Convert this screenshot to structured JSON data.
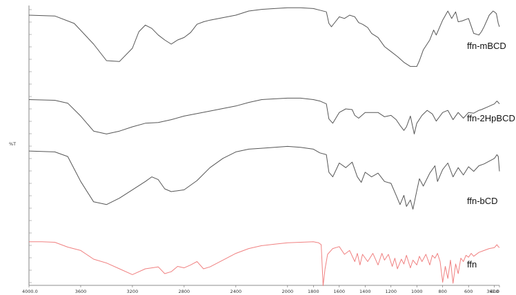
{
  "chart_data": {
    "type": "line",
    "title": "",
    "xlabel": "",
    "ylabel": "%T",
    "xlim": [
      4000.0,
      361.0
    ],
    "y_units": "%T (stacked traces, arbitrary offsets)",
    "grid": false,
    "legend": "inline labels at right end of each trace",
    "x_tick_labels": [
      "4000.0",
      "3600",
      "3200",
      "2800",
      "2400",
      "2000",
      "1800",
      "1600",
      "1400",
      "1200",
      "1000",
      "800",
      "600",
      "400",
      "361.0"
    ],
    "x_tick_values": [
      4000,
      3600,
      3200,
      2800,
      2400,
      2000,
      1800,
      1600,
      1400,
      1200,
      1000,
      800,
      600,
      400,
      361
    ],
    "series": [
      {
        "name": "ffn-mBCD",
        "color": "#555555",
        "x": [
          4000,
          3800,
          3650,
          3500,
          3400,
          3300,
          3200,
          3150,
          3100,
          3050,
          3000,
          2950,
          2900,
          2850,
          2800,
          2750,
          2700,
          2650,
          2600,
          2500,
          2400,
          2300,
          2200,
          2100,
          2000,
          1900,
          1800,
          1750,
          1700,
          1680,
          1660,
          1640,
          1600,
          1560,
          1520,
          1480,
          1450,
          1420,
          1400,
          1380,
          1350,
          1300,
          1250,
          1200,
          1150,
          1100,
          1050,
          1030,
          1000,
          980,
          950,
          900,
          870,
          850,
          800,
          760,
          730,
          700,
          680,
          650,
          600,
          560,
          520,
          500,
          480,
          440,
          410,
          400,
          385,
          370,
          361
        ],
        "y": [
          90,
          89,
          80,
          55,
          35,
          34,
          50,
          70,
          78,
          74,
          66,
          60,
          55,
          60,
          63,
          69,
          79,
          82,
          84,
          87,
          90,
          95,
          97,
          98,
          99,
          99,
          98,
          96,
          94,
          80,
          76,
          80,
          88,
          86,
          90,
          88,
          81,
          79,
          77,
          75,
          68,
          63,
          52,
          46,
          40,
          33,
          28,
          28,
          28,
          35,
          48,
          60,
          72,
          66,
          84,
          95,
          86,
          94,
          82,
          83,
          86,
          68,
          66,
          70,
          76,
          90,
          95,
          94,
          92,
          80,
          76
        ]
      },
      {
        "name": "ffn-2HpBCD",
        "color": "#555555",
        "x": [
          4000,
          3800,
          3700,
          3600,
          3500,
          3400,
          3300,
          3200,
          3100,
          3000,
          2900,
          2800,
          2600,
          2400,
          2300,
          2200,
          2100,
          2000,
          1900,
          1800,
          1750,
          1700,
          1680,
          1650,
          1600,
          1550,
          1500,
          1480,
          1450,
          1400,
          1300,
          1250,
          1200,
          1160,
          1130,
          1100,
          1080,
          1050,
          1020,
          1000,
          960,
          920,
          880,
          850,
          800,
          760,
          720,
          680,
          640,
          600,
          560,
          520,
          500,
          450,
          400,
          380,
          370,
          361
        ],
        "y": [
          88,
          87,
          83,
          65,
          44,
          40,
          44,
          50,
          55,
          56,
          60,
          65,
          72,
          79,
          84,
          88,
          89,
          90,
          90,
          88,
          86,
          82,
          61,
          55,
          70,
          75,
          74,
          66,
          62,
          70,
          70,
          64,
          66,
          60,
          52,
          45,
          50,
          65,
          40,
          55,
          66,
          73,
          68,
          58,
          70,
          73,
          60,
          70,
          62,
          70,
          69,
          73,
          74,
          78,
          82,
          86,
          84,
          82
        ]
      },
      {
        "name": "ffn-bCD",
        "color": "#555555",
        "x": [
          4000,
          3800,
          3700,
          3600,
          3500,
          3400,
          3300,
          3200,
          3100,
          3050,
          3000,
          2950,
          2900,
          2800,
          2700,
          2600,
          2500,
          2400,
          2300,
          2200,
          2000,
          1900,
          1800,
          1750,
          1700,
          1680,
          1650,
          1600,
          1550,
          1500,
          1460,
          1430,
          1400,
          1350,
          1300,
          1250,
          1200,
          1160,
          1130,
          1100,
          1080,
          1050,
          1030,
          1000,
          980,
          950,
          900,
          860,
          840,
          800,
          760,
          720,
          680,
          640,
          600,
          560,
          520,
          480,
          440,
          400,
          380,
          370,
          361
        ],
        "y": [
          88,
          87,
          82,
          55,
          33,
          30,
          37,
          46,
          55,
          60,
          57,
          47,
          44,
          46,
          56,
          70,
          80,
          87,
          90,
          91,
          93,
          92,
          90,
          86,
          84,
          65,
          60,
          75,
          70,
          76,
          60,
          54,
          65,
          60,
          64,
          55,
          53,
          40,
          30,
          40,
          28,
          35,
          25,
          45,
          58,
          50,
          64,
          72,
          55,
          68,
          75,
          60,
          70,
          62,
          71,
          66,
          72,
          74,
          77,
          80,
          84,
          82,
          66
        ]
      },
      {
        "name": "ffn",
        "color": "#f08080",
        "x": [
          4000,
          3900,
          3800,
          3700,
          3600,
          3500,
          3400,
          3300,
          3200,
          3100,
          3000,
          2950,
          2900,
          2850,
          2800,
          2750,
          2700,
          2650,
          2600,
          2500,
          2400,
          2300,
          2200,
          2100,
          2000,
          1900,
          1800,
          1760,
          1740,
          1725,
          1710,
          1690,
          1650,
          1600,
          1560,
          1520,
          1480,
          1460,
          1440,
          1420,
          1380,
          1340,
          1300,
          1270,
          1250,
          1220,
          1190,
          1170,
          1150,
          1120,
          1100,
          1080,
          1050,
          1030,
          1000,
          980,
          960,
          930,
          900,
          880,
          860,
          840,
          820,
          800,
          780,
          760,
          740,
          720,
          700,
          680,
          660,
          640,
          620,
          600,
          580,
          560,
          520,
          480,
          440,
          400,
          380,
          370,
          361
        ],
        "y": [
          96,
          96,
          95,
          85,
          78,
          60,
          52,
          40,
          28,
          40,
          44,
          30,
          34,
          45,
          42,
          48,
          55,
          40,
          44,
          58,
          72,
          82,
          88,
          91,
          94,
          95,
          96,
          94,
          90,
          5,
          40,
          70,
          82,
          86,
          70,
          78,
          55,
          72,
          48,
          70,
          55,
          72,
          48,
          72,
          58,
          70,
          45,
          62,
          40,
          60,
          50,
          68,
          42,
          58,
          48,
          66,
          55,
          70,
          48,
          68,
          62,
          72,
          55,
          12,
          45,
          20,
          58,
          10,
          50,
          30,
          62,
          55,
          68,
          64,
          72,
          66,
          74,
          78,
          82,
          84,
          90,
          86,
          84
        ]
      }
    ]
  }
}
